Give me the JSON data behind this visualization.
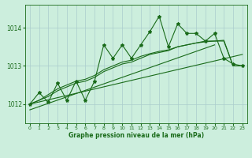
{
  "title": "Graphe pression niveau de la mer (hPa)",
  "background_color": "#cceedd",
  "grid_color": "#aacccc",
  "line_color": "#1a6b1a",
  "marker_color": "#1a6b1a",
  "xlim": [
    -0.5,
    23.5
  ],
  "ylim": [
    1011.5,
    1014.6
  ],
  "yticks": [
    1012,
    1013,
    1014
  ],
  "xticks": [
    0,
    1,
    2,
    3,
    4,
    5,
    6,
    7,
    8,
    9,
    10,
    11,
    12,
    13,
    14,
    15,
    16,
    17,
    18,
    19,
    20,
    21,
    22,
    23
  ],
  "jagged": [
    1012.0,
    1012.3,
    1012.05,
    1012.55,
    1012.1,
    1012.6,
    1012.1,
    1012.6,
    1013.55,
    1013.2,
    1013.55,
    1013.2,
    1013.55,
    1013.9,
    1014.3,
    1013.5,
    1014.1,
    1013.85,
    1013.85,
    1013.65,
    1013.85,
    1013.2,
    1013.05,
    1013.0
  ],
  "trend1_x": [
    0,
    23
  ],
  "trend1_y": [
    1012.0,
    1013.3
  ],
  "trend2_x": [
    0,
    20
  ],
  "trend2_y": [
    1011.85,
    1013.55
  ],
  "smooth1": [
    1012.0,
    1012.1,
    1012.2,
    1012.35,
    1012.45,
    1012.55,
    1012.6,
    1012.7,
    1012.85,
    1012.95,
    1013.05,
    1013.1,
    1013.2,
    1013.3,
    1013.35,
    1013.4,
    1013.5,
    1013.55,
    1013.6,
    1013.65,
    1013.65,
    1013.65,
    1013.0,
    1013.0
  ],
  "smooth2": [
    1012.0,
    1012.1,
    1012.25,
    1012.4,
    1012.5,
    1012.6,
    1012.65,
    1012.75,
    1012.9,
    1013.0,
    1013.1,
    1013.15,
    1013.25,
    1013.32,
    1013.38,
    1013.42,
    1013.5,
    1013.55,
    1013.6,
    1013.63,
    1013.65,
    1013.67,
    1013.0,
    1013.0
  ]
}
